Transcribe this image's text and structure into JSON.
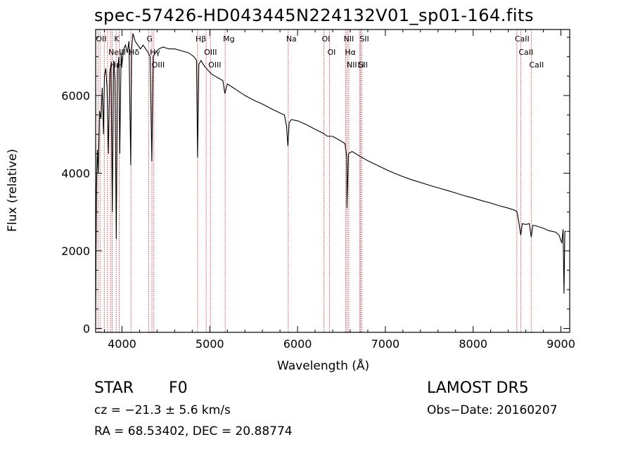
{
  "title": "spec-57426-HD043445N224132V01_sp01-164.fits",
  "info": {
    "class": "STAR",
    "subclass": "F0",
    "survey": "LAMOST DR5",
    "cz": "cz = −21.3 ± 5.6 km/s",
    "obs_date": "Obs−Date: 20160207",
    "radec": "RA =  68.53402, DEC =  20.88774"
  },
  "chart_data": {
    "type": "line",
    "xlabel": "Wavelength (Å)",
    "ylabel": "Flux (relative)",
    "xlim": [
      3700,
      9100
    ],
    "ylim": [
      -100,
      7700
    ],
    "xticks": [
      4000,
      5000,
      6000,
      7000,
      8000,
      9000
    ],
    "xticklabels": [
      "4000",
      "5000",
      "6000",
      "7000",
      "8000",
      "9000"
    ],
    "yticks": [
      0,
      2000,
      4000,
      6000
    ],
    "yticklabels": [
      "0",
      "2000",
      "4000",
      "6000"
    ],
    "grid": false,
    "legend": "none",
    "series": [
      {
        "x": [
          3700,
          3710,
          3720,
          3730,
          3745,
          3760,
          3775,
          3790,
          3800,
          3815,
          3830,
          3845,
          3860,
          3875,
          3890,
          3905,
          3920,
          3935,
          3950,
          3965,
          3975,
          3990,
          4000,
          4020,
          4040,
          4060,
          4080,
          4100,
          4110,
          4125,
          4150,
          4180,
          4210,
          4240,
          4270,
          4300,
          4320,
          4340,
          4355,
          4380,
          4420,
          4470,
          4530,
          4600,
          4680,
          4760,
          4820,
          4850,
          4861,
          4875,
          4900,
          4940,
          4980,
          5020,
          5060,
          5100,
          5150,
          5172,
          5200,
          5300,
          5400,
          5500,
          5600,
          5700,
          5800,
          5850,
          5875,
          5890,
          5905,
          5930,
          6000,
          6100,
          6200,
          6300,
          6340,
          6400,
          6500,
          6540,
          6560,
          6563,
          6580,
          6620,
          6700,
          6800,
          6900,
          7000,
          7100,
          7200,
          7300,
          7400,
          7500,
          7600,
          7700,
          7800,
          7900,
          8000,
          8100,
          8200,
          8300,
          8400,
          8480,
          8500,
          8520,
          8542,
          8560,
          8600,
          8640,
          8662,
          8680,
          8720,
          8800,
          8860,
          8900,
          8940,
          8980,
          9010,
          9025,
          9035,
          9045,
          9060
        ],
        "y": [
          400,
          3600,
          4600,
          4000,
          5600,
          5400,
          6200,
          5000,
          6500,
          6700,
          6200,
          4500,
          6600,
          6800,
          3000,
          6900,
          6400,
          2300,
          6700,
          7000,
          4500,
          7100,
          6800,
          7200,
          7300,
          7100,
          7400,
          4200,
          7200,
          7600,
          7400,
          7300,
          7200,
          7300,
          7200,
          7100,
          7000,
          4300,
          7000,
          7100,
          7200,
          7250,
          7200,
          7200,
          7150,
          7100,
          7000,
          6900,
          4400,
          6800,
          6900,
          6750,
          6650,
          6550,
          6500,
          6450,
          6380,
          6050,
          6300,
          6150,
          6000,
          5880,
          5780,
          5660,
          5550,
          5500,
          5200,
          4700,
          5300,
          5380,
          5350,
          5250,
          5130,
          5020,
          4950,
          4950,
          4820,
          4760,
          4400,
          3100,
          4500,
          4560,
          4450,
          4320,
          4210,
          4100,
          4000,
          3910,
          3830,
          3760,
          3690,
          3620,
          3560,
          3490,
          3420,
          3360,
          3290,
          3230,
          3160,
          3100,
          3040,
          3000,
          2750,
          2400,
          2700,
          2680,
          2700,
          2350,
          2660,
          2640,
          2580,
          2520,
          2500,
          2480,
          2400,
          2200,
          2550,
          900,
          2500,
          2500
        ]
      }
    ],
    "lines": [
      {
        "wl": 3727,
        "label": "OII"
      },
      {
        "wl": 3750,
        "label": ""
      },
      {
        "wl": 3798,
        "label": ""
      },
      {
        "wl": 3835,
        "label": ""
      },
      {
        "wl": 3869,
        "label": "NeIII"
      },
      {
        "wl": 3889,
        "label": "Hε"
      },
      {
        "wl": 3934,
        "label": "K"
      },
      {
        "wl": 3969,
        "label": "H"
      },
      {
        "wl": 4102,
        "label": "Hδ"
      },
      {
        "wl": 4304,
        "label": "G"
      },
      {
        "wl": 4341,
        "label": "Hγ"
      },
      {
        "wl": 4363,
        "label": "OIII"
      },
      {
        "wl": 4861,
        "label": "Hβ"
      },
      {
        "wl": 4959,
        "label": "OIII"
      },
      {
        "wl": 5007,
        "label": "OIII"
      },
      {
        "wl": 5175,
        "label": "Mg"
      },
      {
        "wl": 5894,
        "label": "Na"
      },
      {
        "wl": 6300,
        "label": "OI"
      },
      {
        "wl": 6364,
        "label": "OI"
      },
      {
        "wl": 6548,
        "label": "NII"
      },
      {
        "wl": 6563,
        "label": "Hα"
      },
      {
        "wl": 6584,
        "label": "NII"
      },
      {
        "wl": 6707,
        "label": "Li"
      },
      {
        "wl": 6717,
        "label": "SII"
      },
      {
        "wl": 6731,
        "label": "SII"
      },
      {
        "wl": 8498,
        "label": "CaII"
      },
      {
        "wl": 8542,
        "label": "CaII"
      },
      {
        "wl": 8662,
        "label": "CaII"
      }
    ]
  }
}
